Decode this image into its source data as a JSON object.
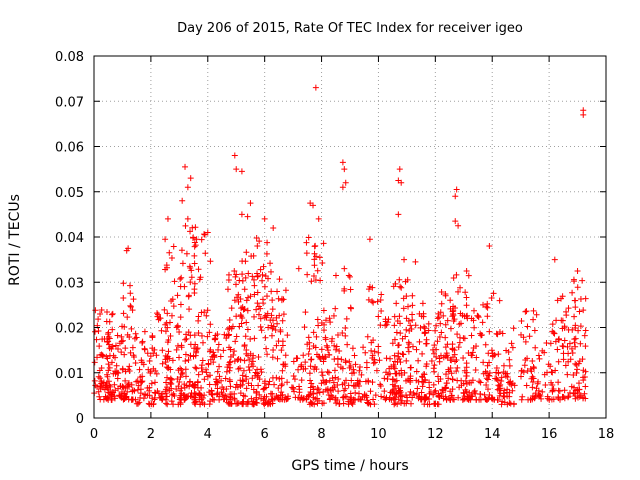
{
  "chart_data": {
    "type": "scatter",
    "title": "Day 206 of 2015, Rate Of TEC Index for receiver igeo",
    "xlabel": "GPS time / hours",
    "ylabel": "ROTI / TECUs",
    "xlim": [
      0,
      18
    ],
    "ylim": [
      0,
      0.08
    ],
    "xticks": [
      0,
      2,
      4,
      6,
      8,
      10,
      12,
      14,
      16,
      18
    ],
    "yticks": [
      0,
      0.01,
      0.02,
      0.03,
      0.04,
      0.05,
      0.06,
      0.07,
      0.08
    ],
    "xtick_labels": [
      "0",
      "2",
      "4",
      "6",
      "8",
      "10",
      "12",
      "14",
      "16",
      "18"
    ],
    "ytick_labels": [
      "0",
      "0.01",
      "0.02",
      "0.03",
      "0.04",
      "0.05",
      "0.06",
      "0.07",
      "0.08"
    ],
    "grid": true,
    "marker": "plus",
    "color": "#ff0000",
    "series": [
      {
        "name": "ROTI",
        "outliers": [
          [
            7.8,
            0.073
          ],
          [
            17.2,
            0.068
          ],
          [
            17.2,
            0.067
          ],
          [
            4.95,
            0.058
          ],
          [
            5.0,
            0.055
          ],
          [
            5.2,
            0.0545
          ],
          [
            3.2,
            0.0555
          ],
          [
            8.75,
            0.0565
          ],
          [
            8.8,
            0.055
          ],
          [
            10.75,
            0.055
          ],
          [
            10.7,
            0.0525
          ],
          [
            10.8,
            0.052
          ],
          [
            10.7,
            0.045
          ],
          [
            12.75,
            0.0505
          ],
          [
            12.7,
            0.049
          ],
          [
            3.4,
            0.053
          ],
          [
            3.3,
            0.051
          ],
          [
            3.1,
            0.048
          ],
          [
            3.3,
            0.044
          ],
          [
            2.6,
            0.044
          ],
          [
            5.5,
            0.0475
          ],
          [
            7.6,
            0.0475
          ],
          [
            7.7,
            0.047
          ],
          [
            6.0,
            0.044
          ],
          [
            6.3,
            0.042
          ],
          [
            5.2,
            0.045
          ],
          [
            5.4,
            0.0445
          ],
          [
            12.7,
            0.0435
          ],
          [
            12.8,
            0.0425
          ],
          [
            9.7,
            0.0395
          ],
          [
            13.9,
            0.038
          ],
          [
            1.2,
            0.0375
          ],
          [
            1.15,
            0.037
          ],
          [
            16.2,
            0.035
          ],
          [
            2.5,
            0.0395
          ],
          [
            4.0,
            0.041
          ],
          [
            3.9,
            0.0405
          ],
          [
            7.9,
            0.044
          ],
          [
            8.85,
            0.052
          ],
          [
            8.75,
            0.051
          ],
          [
            10.9,
            0.035
          ],
          [
            11.3,
            0.0345
          ],
          [
            13.1,
            0.0325
          ],
          [
            17.0,
            0.0325
          ],
          [
            7.2,
            0.033
          ],
          [
            8.8,
            0.033
          ],
          [
            9.7,
            0.029
          ],
          [
            16.3,
            0.026
          ]
        ],
        "clusters": [
          {
            "x": [
              0.0,
              0.7
            ],
            "y": [
              0.004,
              0.024
            ],
            "n": 70
          },
          {
            "x": [
              0.4,
              1.1
            ],
            "y": [
              0.004,
              0.021
            ],
            "n": 60
          },
          {
            "x": [
              1.0,
              1.5
            ],
            "y": [
              0.004,
              0.031
            ],
            "n": 55
          },
          {
            "x": [
              1.5,
              2.1
            ],
            "y": [
              0.003,
              0.02
            ],
            "n": 50
          },
          {
            "x": [
              2.1,
              2.6
            ],
            "y": [
              0.004,
              0.024
            ],
            "n": 40
          },
          {
            "x": [
              2.5,
              3.1
            ],
            "y": [
              0.003,
              0.038
            ],
            "n": 70
          },
          {
            "x": [
              3.0,
              3.6
            ],
            "y": [
              0.004,
              0.044
            ],
            "n": 75
          },
          {
            "x": [
              3.5,
              4.1
            ],
            "y": [
              0.003,
              0.041
            ],
            "n": 75
          },
          {
            "x": [
              4.1,
              4.8
            ],
            "y": [
              0.004,
              0.02
            ],
            "n": 60
          },
          {
            "x": [
              4.7,
              5.3
            ],
            "y": [
              0.003,
              0.035
            ],
            "n": 75
          },
          {
            "x": [
              5.2,
              5.8
            ],
            "y": [
              0.003,
              0.04
            ],
            "n": 75
          },
          {
            "x": [
              5.7,
              6.3
            ],
            "y": [
              0.003,
              0.042
            ],
            "n": 70
          },
          {
            "x": [
              6.2,
              6.8
            ],
            "y": [
              0.004,
              0.031
            ],
            "n": 65
          },
          {
            "x": [
              6.8,
              7.5
            ],
            "y": [
              0.004,
              0.014
            ],
            "n": 30
          },
          {
            "x": [
              7.4,
              8.1
            ],
            "y": [
              0.003,
              0.04
            ],
            "n": 80
          },
          {
            "x": [
              8.0,
              8.5
            ],
            "y": [
              0.004,
              0.026
            ],
            "n": 50
          },
          {
            "x": [
              8.5,
              9.1
            ],
            "y": [
              0.003,
              0.032
            ],
            "n": 55
          },
          {
            "x": [
              9.1,
              9.6
            ],
            "y": [
              0.004,
              0.016
            ],
            "n": 35
          },
          {
            "x": [
              9.6,
              10.1
            ],
            "y": [
              0.003,
              0.029
            ],
            "n": 40
          },
          {
            "x": [
              10.2,
              10.6
            ],
            "y": [
              0.004,
              0.022
            ],
            "n": 40
          },
          {
            "x": [
              10.5,
              11.2
            ],
            "y": [
              0.003,
              0.031
            ],
            "n": 85
          },
          {
            "x": [
              11.1,
              11.7
            ],
            "y": [
              0.004,
              0.026
            ],
            "n": 55
          },
          {
            "x": [
              11.6,
              12.2
            ],
            "y": [
              0.003,
              0.024
            ],
            "n": 45
          },
          {
            "x": [
              12.1,
              12.7
            ],
            "y": [
              0.004,
              0.029
            ],
            "n": 65
          },
          {
            "x": [
              12.6,
              13.2
            ],
            "y": [
              0.004,
              0.032
            ],
            "n": 70
          },
          {
            "x": [
              13.2,
              13.9
            ],
            "y": [
              0.004,
              0.025
            ],
            "n": 55
          },
          {
            "x": [
              13.8,
              14.3
            ],
            "y": [
              0.004,
              0.03
            ],
            "n": 45
          },
          {
            "x": [
              14.3,
              14.8
            ],
            "y": [
              0.003,
              0.021
            ],
            "n": 40
          },
          {
            "x": [
              15.0,
              15.6
            ],
            "y": [
              0.004,
              0.024
            ],
            "n": 45
          },
          {
            "x": [
              15.6,
              16.1
            ],
            "y": [
              0.004,
              0.018
            ],
            "n": 25
          },
          {
            "x": [
              16.1,
              16.8
            ],
            "y": [
              0.004,
              0.027
            ],
            "n": 55
          },
          {
            "x": [
              16.8,
              17.3
            ],
            "y": [
              0.004,
              0.031
            ],
            "n": 60
          }
        ]
      }
    ]
  }
}
